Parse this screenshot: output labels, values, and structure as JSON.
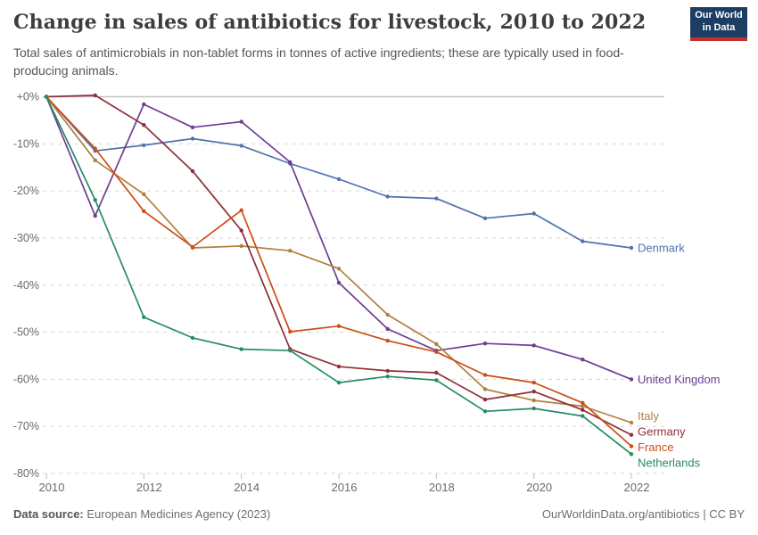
{
  "header": {
    "logo": {
      "line1": "Our World",
      "line2": "in Data",
      "bg_color": "#1d3d63",
      "accent_color": "#c4302b"
    }
  },
  "footer": {
    "source_label": "Data source:",
    "source_text": " European Medicines Agency (2023)",
    "attribution": "OurWorldinData.org/antibiotics | CC BY"
  },
  "chart_data": {
    "type": "line",
    "title": "Change in sales of antibiotics for livestock, 2010 to 2022",
    "subtitle": "Total sales of antimicrobials in non-tablet forms in tonnes of active ingredients; these are typically used in food-producing animals.",
    "xlabel": "",
    "ylabel": "",
    "x": [
      2010,
      2011,
      2012,
      2013,
      2014,
      2015,
      2016,
      2017,
      2018,
      2019,
      2020,
      2021,
      2022
    ],
    "x_ticks": [
      2010,
      2012,
      2014,
      2016,
      2018,
      2020,
      2022
    ],
    "y_ticks": [
      0,
      -10,
      -20,
      -30,
      -40,
      -50,
      -60,
      -70,
      -80
    ],
    "y_tick_labels": [
      "+0%",
      "-10%",
      "-20%",
      "-30%",
      "-40%",
      "-50%",
      "-60%",
      "-70%",
      "-80%"
    ],
    "ylim": [
      -80,
      0
    ],
    "unit": "%",
    "grid": "horizontal-dashed",
    "legend_position": "end-of-line-labels",
    "series": [
      {
        "name": "Denmark",
        "color": "#4F73AC",
        "values": [
          0,
          -11.5,
          -10.3,
          -8.9,
          -10.4,
          -14.2,
          -17.5,
          -21.2,
          -21.6,
          -25.8,
          -24.8,
          -30.7,
          -32.1
        ]
      },
      {
        "name": "United Kingdom",
        "color": "#6D3E91",
        "values": [
          0,
          -25.3,
          -1.6,
          -6.5,
          -5.3,
          -13.9,
          -39.5,
          -49.3,
          -53.9,
          -52.4,
          -52.8,
          -55.8,
          -60.0
        ]
      },
      {
        "name": "Italy",
        "color": "#B0803D",
        "values": [
          0,
          -13.5,
          -20.7,
          -32.1,
          -31.7,
          -32.7,
          -36.5,
          -46.3,
          -52.5,
          -62.1,
          -64.5,
          -65.7,
          -69.2
        ]
      },
      {
        "name": "Germany",
        "color": "#8E3039",
        "values": [
          0,
          0.3,
          -6.0,
          -15.8,
          -28.4,
          -53.6,
          -57.3,
          -58.2,
          -58.6,
          -64.3,
          -62.6,
          -66.5,
          -71.8
        ]
      },
      {
        "name": "France",
        "color": "#CB4E15",
        "values": [
          0,
          -11.0,
          -24.3,
          -31.9,
          -24.1,
          -49.9,
          -48.7,
          -51.8,
          -54.2,
          -59.1,
          -60.7,
          -65.0,
          -74.2
        ]
      },
      {
        "name": "Netherlands",
        "color": "#278B66",
        "values": [
          0,
          -21.9,
          -46.8,
          -51.2,
          -53.6,
          -53.9,
          -60.7,
          -59.4,
          -60.2,
          -66.8,
          -66.2,
          -67.8,
          -75.9
        ]
      }
    ]
  }
}
